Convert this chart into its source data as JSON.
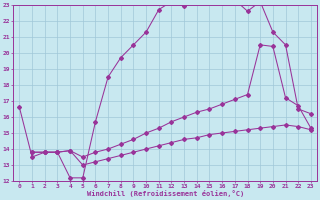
{
  "background_color": "#c8e8f0",
  "grid_color": "#a0c8d8",
  "line_color": "#993399",
  "xlabel": "Windchill (Refroidissement éolien,°C)",
  "xlim": [
    -0.5,
    23.5
  ],
  "ylim": [
    12,
    23
  ],
  "yticks": [
    12,
    13,
    14,
    15,
    16,
    17,
    18,
    19,
    20,
    21,
    22,
    23
  ],
  "xticks": [
    0,
    1,
    2,
    3,
    4,
    5,
    6,
    7,
    8,
    9,
    10,
    11,
    12,
    13,
    14,
    15,
    16,
    17,
    18,
    19,
    20,
    21,
    22,
    23
  ],
  "curve1_x": [
    0,
    1,
    2,
    3,
    4,
    5,
    6,
    7,
    8,
    9,
    10,
    11,
    12,
    13,
    14,
    15,
    16,
    17,
    18,
    19,
    20,
    21,
    22,
    23
  ],
  "curve1_y": [
    16.6,
    13.5,
    13.8,
    13.8,
    12.2,
    12.2,
    15.7,
    18.5,
    19.7,
    20.5,
    21.3,
    22.7,
    23.2,
    22.9,
    23.3,
    23.2,
    23.1,
    23.3,
    22.6,
    23.2,
    21.3,
    20.5,
    16.5,
    16.2
  ],
  "curve2_x": [
    1,
    2,
    3,
    4,
    5,
    6,
    7,
    8,
    9,
    10,
    11,
    12,
    13,
    14,
    15,
    16,
    17,
    18,
    19,
    20,
    21,
    22,
    23
  ],
  "curve2_y": [
    13.8,
    13.8,
    13.8,
    13.9,
    13.5,
    13.8,
    14.0,
    14.3,
    14.6,
    15.0,
    15.3,
    15.7,
    16.0,
    16.3,
    16.5,
    16.8,
    17.1,
    17.4,
    20.5,
    20.4,
    17.2,
    16.7,
    15.3
  ],
  "curve3_x": [
    1,
    2,
    3,
    4,
    5,
    6,
    7,
    8,
    9,
    10,
    11,
    12,
    13,
    14,
    15,
    16,
    17,
    18,
    19,
    20,
    21,
    22,
    23
  ],
  "curve3_y": [
    13.8,
    13.8,
    13.8,
    13.9,
    13.0,
    13.2,
    13.4,
    13.6,
    13.8,
    14.0,
    14.2,
    14.4,
    14.6,
    14.7,
    14.9,
    15.0,
    15.1,
    15.2,
    15.3,
    15.4,
    15.5,
    15.4,
    15.2
  ]
}
